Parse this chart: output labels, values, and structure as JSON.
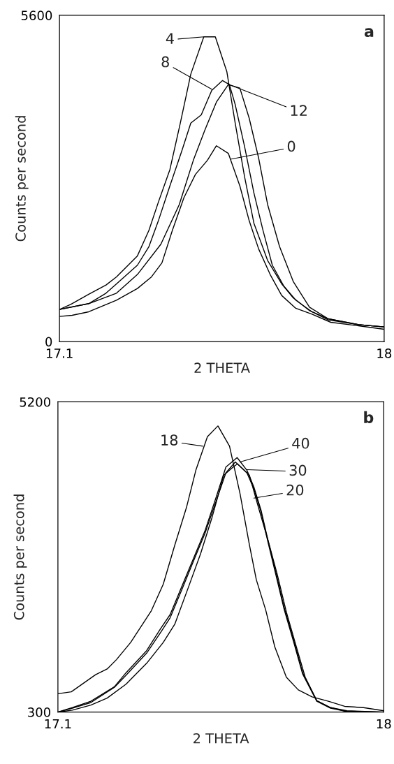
{
  "chart_data": [
    {
      "type": "line",
      "title": "a",
      "xlabel": "2 THETA",
      "ylabel": "Counts per second",
      "xlim": [
        17.1,
        18
      ],
      "xticks": [
        17.1,
        18
      ],
      "ylim": [
        0,
        5600
      ],
      "yticks": [
        0,
        5600
      ],
      "grid": false,
      "legend": false,
      "marker": "none",
      "line_style": "solid",
      "series": [
        {
          "color": "#000000",
          "x": [
            17.1,
            17.132,
            17.181,
            17.229,
            17.258,
            17.316,
            17.348,
            17.374,
            17.406,
            17.435,
            17.464,
            17.5,
            17.532,
            17.564,
            17.587,
            17.613,
            17.639,
            17.677,
            17.716,
            17.748,
            17.793,
            17.845,
            17.929,
            18.0
          ],
          "values": [
            550,
            640,
            810,
            970,
            1110,
            1470,
            1910,
            2390,
            2950,
            3750,
            4590,
            5230,
            5230,
            4630,
            3750,
            2830,
            2030,
            1390,
            990,
            750,
            530,
            390,
            290,
            250
          ]
        },
        {
          "color": "#000000",
          "x": [
            17.1,
            17.132,
            17.181,
            17.229,
            17.258,
            17.316,
            17.348,
            17.374,
            17.406,
            17.439,
            17.464,
            17.493,
            17.522,
            17.552,
            17.571,
            17.587,
            17.613,
            17.639,
            17.664,
            17.69,
            17.722,
            17.755,
            17.8,
            17.845,
            17.929,
            18.0
          ],
          "values": [
            550,
            590,
            650,
            830,
            990,
            1310,
            1630,
            2070,
            2670,
            3270,
            3750,
            3890,
            4310,
            4480,
            4410,
            4070,
            3350,
            2550,
            1910,
            1310,
            950,
            710,
            510,
            370,
            290,
            250
          ]
        },
        {
          "color": "#000000",
          "x": [
            17.1,
            17.181,
            17.258,
            17.316,
            17.381,
            17.432,
            17.471,
            17.503,
            17.535,
            17.568,
            17.6,
            17.626,
            17.652,
            17.677,
            17.71,
            17.748,
            17.793,
            17.845,
            17.929,
            18.0
          ],
          "values": [
            550,
            650,
            830,
            1150,
            1670,
            2350,
            3110,
            3630,
            4110,
            4410,
            4350,
            3830,
            3150,
            2350,
            1630,
            1030,
            590,
            390,
            290,
            250
          ]
        },
        {
          "color": "#000000",
          "x": [
            17.1,
            17.135,
            17.181,
            17.258,
            17.316,
            17.355,
            17.384,
            17.413,
            17.445,
            17.477,
            17.51,
            17.535,
            17.568,
            17.6,
            17.626,
            17.652,
            17.684,
            17.716,
            17.755,
            17.8,
            17.852,
            17.929,
            18.0
          ],
          "values": [
            430,
            450,
            510,
            710,
            910,
            1110,
            1350,
            1910,
            2470,
            2870,
            3110,
            3360,
            3230,
            2670,
            2070,
            1590,
            1150,
            790,
            570,
            470,
            330,
            270,
            210
          ]
        }
      ],
      "annotations": [
        {
          "text": "4",
          "x": 17.5,
          "y": 5230
        },
        {
          "text": "8",
          "x": 17.522,
          "y": 4330
        },
        {
          "text": "12",
          "x": 17.571,
          "y": 4410
        },
        {
          "text": "0",
          "x": 17.574,
          "y": 3130
        }
      ]
    },
    {
      "type": "line",
      "title": "b",
      "xlabel": "2 THETA",
      "ylabel": "Counts per second",
      "xlim": [
        17.1,
        18
      ],
      "xticks": [
        17.1,
        18
      ],
      "ylim": [
        300,
        5200
      ],
      "yticks": [
        300,
        5200
      ],
      "grid": false,
      "legend": false,
      "marker": "none",
      "line_style": "solid",
      "series": [
        {
          "color": "#000000",
          "x": [
            17.1,
            17.137,
            17.204,
            17.236,
            17.262,
            17.301,
            17.358,
            17.391,
            17.423,
            17.455,
            17.481,
            17.513,
            17.542,
            17.574,
            17.603,
            17.629,
            17.648,
            17.674,
            17.699,
            17.731,
            17.764,
            17.802,
            17.847,
            17.892,
            17.944,
            18.0
          ],
          "values": [
            590,
            620,
            890,
            980,
            1130,
            1400,
            1900,
            2320,
            2940,
            3530,
            4120,
            4650,
            4820,
            4500,
            3750,
            2940,
            2390,
            1910,
            1330,
            850,
            650,
            540,
            470,
            390,
            370,
            320
          ]
        },
        {
          "color": "#000000",
          "x": [
            17.1,
            17.14,
            17.191,
            17.256,
            17.288,
            17.345,
            17.384,
            17.41,
            17.442,
            17.474,
            17.506,
            17.538,
            17.564,
            17.595,
            17.622,
            17.641,
            17.661,
            17.68,
            17.699,
            17.725,
            17.751,
            17.776,
            17.815,
            17.853,
            17.898,
            18.0
          ],
          "values": [
            300,
            370,
            470,
            700,
            920,
            1270,
            1620,
            1840,
            2280,
            2720,
            3160,
            3710,
            4170,
            4320,
            4120,
            3860,
            3490,
            3020,
            2580,
            1950,
            1440,
            920,
            480,
            370,
            310,
            300
          ]
        },
        {
          "color": "#000000",
          "x": [
            17.1,
            17.14,
            17.191,
            17.256,
            17.288,
            17.345,
            17.384,
            17.41,
            17.442,
            17.474,
            17.506,
            17.538,
            17.564,
            17.59,
            17.622,
            17.641,
            17.661,
            17.68,
            17.699,
            17.725,
            17.751,
            17.776,
            17.815,
            17.853,
            17.898,
            18.0
          ],
          "values": [
            300,
            360,
            450,
            690,
            880,
            1230,
            1560,
            1790,
            2230,
            2680,
            3120,
            3650,
            4080,
            4250,
            4080,
            3830,
            3460,
            2990,
            2540,
            1920,
            1410,
            900,
            470,
            360,
            310,
            300
          ]
        },
        {
          "color": "#000000",
          "x": [
            17.1,
            17.14,
            17.191,
            17.236,
            17.288,
            17.345,
            17.391,
            17.423,
            17.461,
            17.494,
            17.526,
            17.558,
            17.584,
            17.596,
            17.629,
            17.654,
            17.68,
            17.706,
            17.731,
            17.757,
            17.783,
            17.815,
            17.853,
            17.898,
            18.0
          ],
          "values": [
            300,
            330,
            410,
            520,
            740,
            1070,
            1400,
            1690,
            2280,
            2800,
            3380,
            4040,
            4170,
            4220,
            4040,
            3530,
            3020,
            2470,
            1880,
            1360,
            850,
            480,
            370,
            320,
            300
          ]
        }
      ],
      "annotations": [
        {
          "text": "18",
          "x": 17.5,
          "y": 4500
        },
        {
          "text": "40",
          "x": 17.603,
          "y": 4250
        },
        {
          "text": "30",
          "x": 17.622,
          "y": 4130
        },
        {
          "text": "20",
          "x": 17.641,
          "y": 3680
        }
      ]
    }
  ]
}
